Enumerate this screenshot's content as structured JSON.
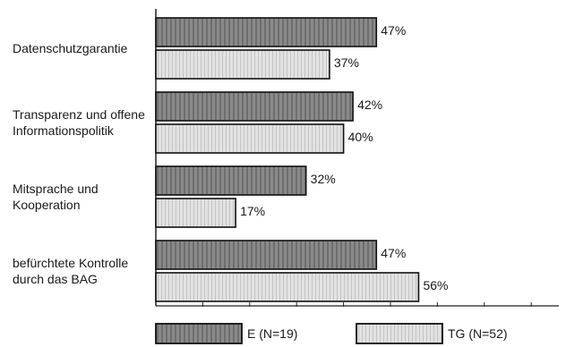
{
  "chart_data": {
    "type": "bar",
    "orientation": "horizontal",
    "categories": [
      [
        "Datenschutzgarantie"
      ],
      [
        "Transparenz und offene",
        "Informationspolitik"
      ],
      [
        "Mitsprache und",
        "Kooperation"
      ],
      [
        "befürchtete Kontrolle",
        "durch das BAG"
      ]
    ],
    "series": [
      {
        "name": "E (N=19)",
        "values": [
          47,
          42,
          32,
          47
        ],
        "color": "#8c8c8c"
      },
      {
        "name": "TG (N=52)",
        "values": [
          37,
          40,
          17,
          56
        ],
        "color": "#dcdcdc"
      }
    ],
    "value_suffix": "%",
    "xlim": [
      0,
      86
    ],
    "legend_position": "bottom",
    "grid": false
  }
}
